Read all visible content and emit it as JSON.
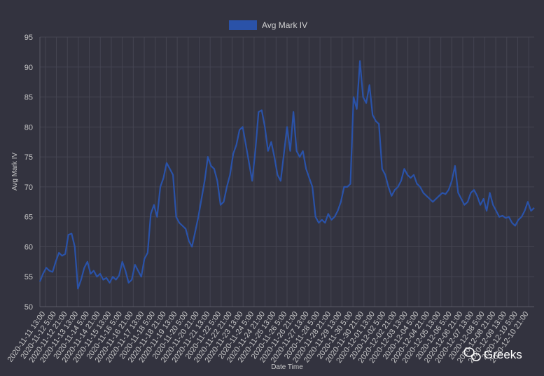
{
  "watermark": {
    "brand": "Greeks",
    "icon": "wechat-icon"
  },
  "colors": {
    "background": "#33333f",
    "line": "#2a52a8",
    "grid": "#454552",
    "text": "#c8c8c8"
  },
  "chart_data": {
    "type": "line",
    "title": "",
    "xlabel": "Date Time",
    "ylabel": "Avg Mark IV",
    "ylim": [
      50,
      95
    ],
    "yticks": [
      50,
      55,
      60,
      65,
      70,
      75,
      80,
      85,
      90,
      95
    ],
    "grid": true,
    "legend_position": "top-center",
    "x_tick_labels": [
      "2020-11-11 13:00",
      "2020-11-12 5:00",
      "2020-11-12 21:00",
      "2020-11-13 13:00",
      "2020-11-14 5:00",
      "2020-11-14 21:00",
      "2020-11-15 13:00",
      "2020-11-16 5:00",
      "2020-11-16 21:00",
      "2020-11-17 13:00",
      "2020-11-18 5:00",
      "2020-11-18 21:00",
      "2020-11-19 13:00",
      "2020-11-20 5:00",
      "2020-11-20 21:00",
      "2020-11-21 13:00",
      "2020-11-22 5:00",
      "2020-11-22 21:00",
      "2020-11-23 13:00",
      "2020-11-24 5:00",
      "2020-11-24 21:00",
      "2020-11-25 13:00",
      "2020-11-26 5:00",
      "2020-11-26 21:00",
      "2020-11-27 13:00",
      "2020-11-28 5:00",
      "2020-11-28 21:00",
      "2020-11-29 13:00",
      "2020-11-30 5:00",
      "2020-11-30 21:00",
      "2020-12-01 13:00",
      "2020-12-02 5:00",
      "2020-12-02 21:00",
      "2020-12-03 13:00",
      "2020-12-04 5:00",
      "2020-12-04 21:00",
      "2020-12-05 13:00",
      "2020-12-06 5:00",
      "2020-12-06 21:00",
      "2020-12-07 13:00",
      "2020-12-08 5:00",
      "2020-12-08 21:00",
      "2020-12-09 13:00",
      "2020-12-10 5:00",
      "2020-12-10 21:00"
    ],
    "series": [
      {
        "name": "Avg Mark IV",
        "values": [
          54.2,
          55.5,
          56.5,
          56.0,
          55.8,
          57.5,
          59.0,
          58.5,
          58.8,
          62.0,
          62.2,
          60.0,
          53.0,
          54.5,
          56.5,
          57.5,
          55.5,
          56.0,
          55.0,
          55.5,
          54.5,
          54.8,
          54.0,
          55.0,
          54.5,
          55.2,
          57.5,
          56.0,
          54.0,
          54.5,
          57.0,
          56.0,
          55.0,
          58.0,
          59.0,
          65.5,
          67.0,
          65.0,
          70.0,
          71.5,
          74.0,
          73.0,
          72.0,
          65.0,
          64.0,
          63.5,
          63.0,
          61.0,
          60.0,
          62.5,
          65.0,
          68.0,
          71.0,
          75.0,
          73.5,
          73.0,
          71.0,
          67.0,
          67.5,
          70.0,
          72.0,
          75.5,
          77.0,
          79.5,
          80.0,
          77.0,
          74.0,
          71.0,
          76.0,
          82.5,
          82.8,
          80.0,
          76.0,
          77.5,
          75.0,
          72.0,
          71.0,
          75.5,
          80.0,
          76.0,
          82.5,
          76.0,
          75.0,
          76.0,
          73.0,
          71.5,
          70.0,
          65.0,
          64.0,
          64.5,
          64.0,
          65.5,
          64.5,
          65.0,
          66.0,
          67.5,
          70.0,
          70.0,
          70.5,
          85.0,
          83.0,
          91.0,
          85.0,
          84.0,
          87.0,
          82.0,
          81.0,
          80.5,
          73.0,
          72.0,
          70.0,
          68.5,
          69.5,
          70.0,
          71.0,
          73.0,
          72.0,
          71.5,
          72.0,
          70.5,
          70.0,
          69.0,
          68.5,
          68.0,
          67.5,
          68.0,
          68.5,
          69.0,
          68.8,
          69.5,
          71.0,
          73.5,
          69.0,
          68.0,
          67.0,
          67.5,
          69.0,
          69.5,
          68.5,
          67.0,
          68.0,
          66.0,
          69.0,
          67.0,
          66.0,
          65.0,
          65.2,
          64.8,
          65.0,
          64.0,
          63.5,
          64.5,
          65.0,
          66.0,
          67.5,
          66.0,
          66.5
        ]
      }
    ]
  }
}
